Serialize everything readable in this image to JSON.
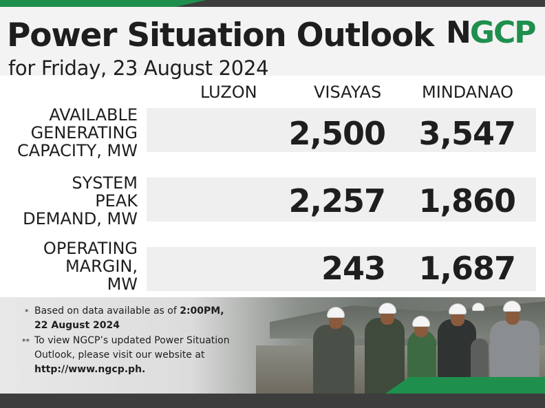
{
  "header": {
    "title": "Power Situation Outlook",
    "subtitle": "for Friday, 23 August 2024",
    "logo_text_first": "N",
    "logo_text_rest": "GCP"
  },
  "columns": [
    "LUZON",
    "VISAYAS",
    "MINDANAO"
  ],
  "rows": [
    {
      "label_lines": [
        "AVAILABLE",
        "GENERATING",
        "CAPACITY, MW"
      ],
      "luzon": "",
      "visayas": "2,500",
      "mindanao": "3,547"
    },
    {
      "label_lines": [
        "SYSTEM",
        "PEAK",
        "DEMAND, MW"
      ],
      "luzon": "",
      "visayas": "2,257",
      "mindanao": "1,860"
    },
    {
      "label_lines": [
        "OPERATING",
        "MARGIN,",
        "MW"
      ],
      "luzon": "",
      "visayas": "243",
      "mindanao": "1,687"
    }
  ],
  "notes": {
    "note1_mark": "*",
    "note1_line1_prefix": "Based on data available as of ",
    "note1_line1_bold": "2:00PM,",
    "note1_line2_bold": "22 August 2024",
    "note2_mark": "**",
    "note2_line1": "To view NGCP’s updated Power Situation",
    "note2_line2": "Outlook, please visit our website at",
    "note2_line3_bold": "http://www.ngcp.ph."
  },
  "colors": {
    "brand_green": "#1f8f4e",
    "dark_bar": "#3d3d3d",
    "band_gray": "#efefef"
  }
}
